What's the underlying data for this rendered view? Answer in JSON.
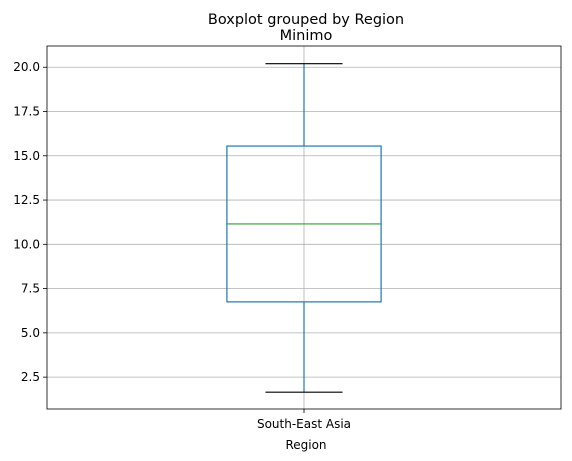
{
  "chart_data": {
    "type": "boxplot",
    "suptitle": "Boxplot grouped by Region",
    "title": "Minimo",
    "xlabel": "Region",
    "ylabel": "",
    "categories": [
      "South-East Asia"
    ],
    "boxes": [
      {
        "category": "South-East Asia",
        "whisker_low": 1.65,
        "q1": 6.75,
        "median": 11.15,
        "q3": 15.55,
        "whisker_high": 20.2
      }
    ],
    "yticks": [
      "2.5",
      "5.0",
      "7.5",
      "10.0",
      "12.5",
      "15.0",
      "17.5",
      "20.0"
    ],
    "ylim": [
      0.7,
      21.2
    ],
    "grid": true,
    "colors": {
      "box": "#1f77b4",
      "median": "#2ca02c",
      "whisker_cap": "#000000",
      "grid": "#b0b0b0"
    }
  }
}
